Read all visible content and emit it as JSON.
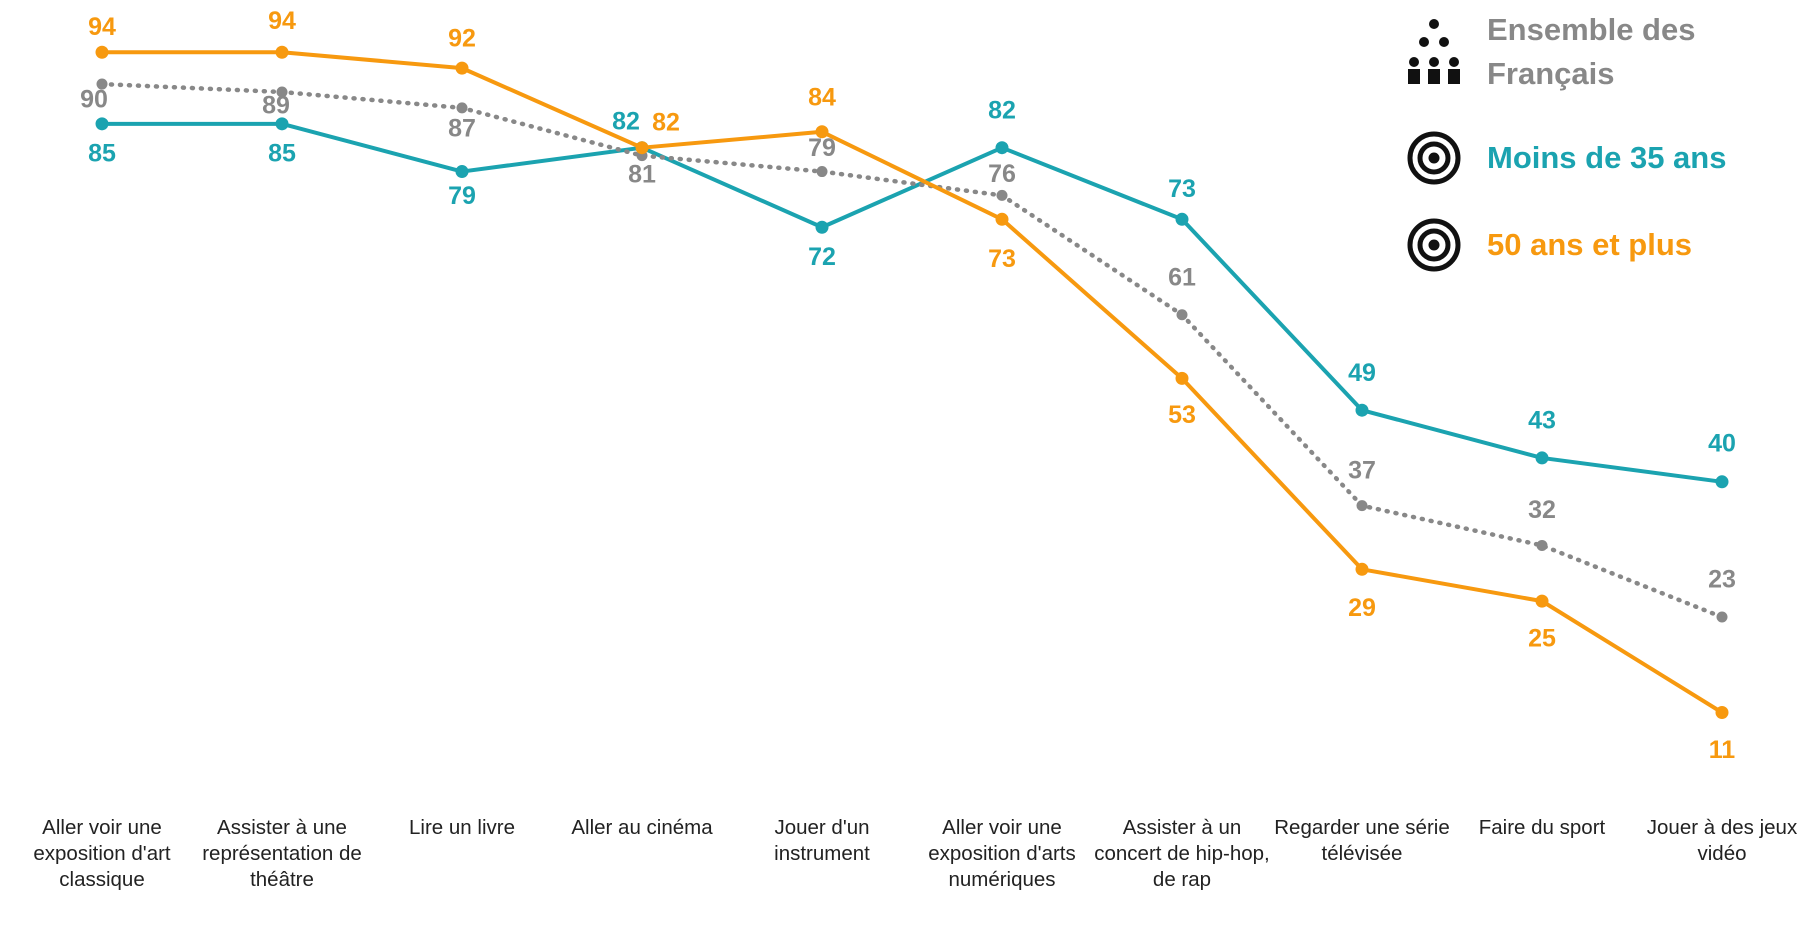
{
  "chart_data": {
    "type": "line",
    "categories": [
      "Aller voir une exposition d'art classique",
      "Assister à une représentation de théâtre",
      "Lire un livre",
      "Aller au cinéma",
      "Jouer d'un instrument",
      "Aller voir une exposition d'arts numériques",
      "Assister à un concert de hip-hop, de rap",
      "Regarder une série télévisée",
      "Faire du sport",
      "Jouer à des jeux vidéo"
    ],
    "series": [
      {
        "name": "Ensemble des Français",
        "color": "#888888",
        "style": "dotted",
        "values": [
          90,
          89,
          87,
          81,
          79,
          76,
          61,
          37,
          32,
          23
        ]
      },
      {
        "name": "Moins de 35 ans",
        "color": "#1ba3b0",
        "style": "solid",
        "values": [
          85,
          85,
          79,
          82,
          72,
          82,
          73,
          49,
          43,
          40
        ]
      },
      {
        "name": "50 ans et plus",
        "color": "#f7990f",
        "style": "solid",
        "values": [
          94,
          94,
          92,
          82,
          84,
          73,
          53,
          29,
          25,
          11
        ]
      }
    ]
  }
}
